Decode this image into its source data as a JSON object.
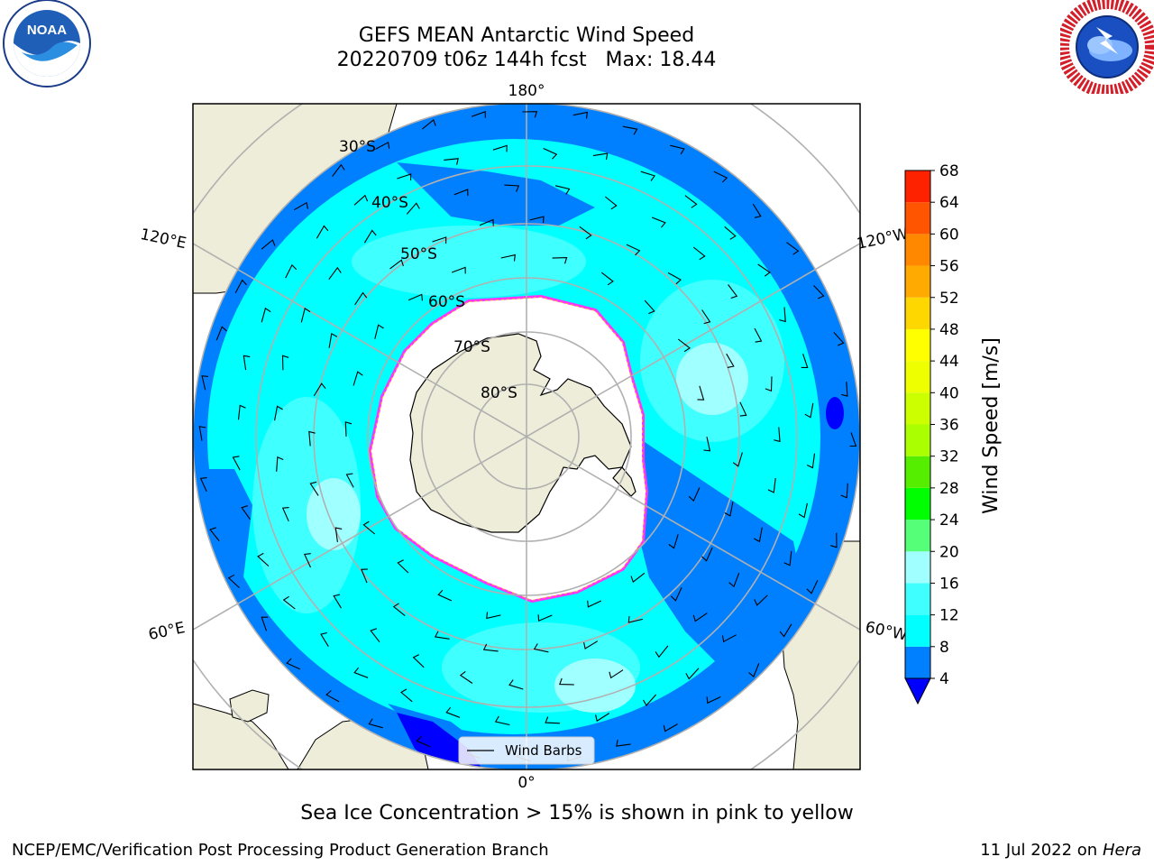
{
  "header": {
    "title_line1": "GEFS MEAN Antarctic Wind Speed",
    "title_line2": "20220709 t06z 144h fcst   Max: 18.44",
    "left_logo": "noaa-logo",
    "left_logo_text": "NOAA",
    "right_logo": "national-weather-service-logo"
  },
  "map": {
    "projection": "south-polar-stereographic",
    "longitude_labels": [
      "180°",
      "120°E",
      "120°W",
      "60°E",
      "60°W",
      "0°"
    ],
    "latitude_labels": [
      "30°S",
      "40°S",
      "50°S",
      "60°S",
      "70°S",
      "80°S"
    ],
    "legend_label": "Wind Barbs",
    "colors": {
      "land": "#eeedd9",
      "sea_ice": "#ffffff",
      "wind_4_8": "#0080ff",
      "wind_8_12": "#00ffff",
      "wind_12_16": "#40ffff",
      "wind_16_20": "#a0ffff",
      "ice_edge": [
        "#ff33ff",
        "#ffaa33"
      ],
      "grid": "#b0b0b0"
    }
  },
  "colorbar": {
    "label": "Wind Speed [m/s]",
    "ticks": [
      "4",
      "8",
      "12",
      "16",
      "20",
      "24",
      "28",
      "32",
      "36",
      "40",
      "44",
      "48",
      "52",
      "56",
      "60",
      "64",
      "68"
    ],
    "colors": [
      "#0080ff",
      "#00ffff",
      "#40ffff",
      "#a0ffff",
      "#55ff77",
      "#00ff00",
      "#55ee00",
      "#aaff00",
      "#ccff00",
      "#eeff00",
      "#ffff00",
      "#ffd700",
      "#ffaa00",
      "#ff8800",
      "#ff5500",
      "#ff2200"
    ],
    "under_color": "#0000ff"
  },
  "caption": "Sea Ice Concentration > 15% is shown in pink to yellow",
  "footer": {
    "left": "NCEP/EMC/Verification Post Processing Product Generation Branch",
    "right_date": "11 Jul 2022 on ",
    "right_host": "Hera"
  }
}
